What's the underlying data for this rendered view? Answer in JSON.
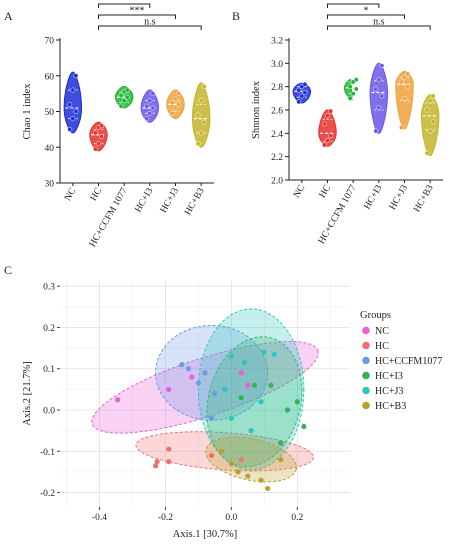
{
  "panels": {
    "a": "A",
    "b": "B",
    "c": "C"
  },
  "chart_data": [
    {
      "type": "violin",
      "panel": "A",
      "ylabel": "Chao 1 index",
      "ylim": [
        30,
        70
      ],
      "yticks": [
        30,
        40,
        50,
        60,
        70
      ],
      "categories": [
        "NC",
        "HC",
        "HC+CCFM 1077",
        "HC+I3",
        "HC+J3",
        "HC+B3"
      ],
      "colors": [
        "#1c2ed6",
        "#e8302c",
        "#1fb532",
        "#6a58e8",
        "#f0a13a",
        "#c4b52a"
      ],
      "groups": [
        {
          "name": "NC",
          "min": 44,
          "q1": 48,
          "median": 51,
          "q3": 56,
          "max": 61,
          "points": [
            45,
            48,
            50,
            52,
            56,
            60
          ]
        },
        {
          "name": "HC",
          "min": 39,
          "q1": 41,
          "median": 43.5,
          "q3": 45,
          "max": 47,
          "points": [
            39.5,
            41,
            43,
            44,
            45.5,
            46
          ]
        },
        {
          "name": "HC+CCFM 1077",
          "min": 51,
          "q1": 52.5,
          "median": 54,
          "q3": 55.5,
          "max": 57,
          "points": [
            51.5,
            53,
            54,
            54.5,
            55.5,
            56
          ]
        },
        {
          "name": "HC+I3",
          "min": 47,
          "q1": 49.5,
          "median": 51,
          "q3": 53,
          "max": 56,
          "points": [
            48,
            49.5,
            51,
            51.5,
            53,
            55
          ]
        },
        {
          "name": "HC+J3",
          "min": 48,
          "q1": 50,
          "median": 52,
          "q3": 53,
          "max": 56,
          "points": [
            49.5,
            51,
            52,
            52.5,
            53.5,
            55
          ]
        },
        {
          "name": "HC+B3",
          "min": 40,
          "q1": 44,
          "median": 48,
          "q3": 52,
          "max": 58,
          "points": [
            41,
            44,
            47,
            49,
            53,
            57
          ]
        }
      ],
      "brackets": [
        {
          "from": "NC",
          "to": "HC",
          "label": "**"
        },
        {
          "from": "HC",
          "to": "HC+CCFM 1077",
          "label": "***"
        },
        {
          "from": "HC",
          "to": "HC+I3",
          "label": "**"
        },
        {
          "from": "HC",
          "to": "HC+J3",
          "label": "***"
        },
        {
          "from": "HC",
          "to": "HC+B3",
          "label": "n.s"
        }
      ]
    },
    {
      "type": "violin",
      "panel": "B",
      "ylabel": "Shnnon index",
      "ylim": [
        2.0,
        3.2
      ],
      "yticks": [
        "2.0",
        "2.2",
        "2.4",
        "2.6",
        "2.8",
        "3.0",
        "3.2"
      ],
      "categories": [
        "NC",
        "HC",
        "HC+CCFM 1077",
        "HC+I3",
        "HC+J3",
        "HC+B3"
      ],
      "colors": [
        "#1c2ed6",
        "#e8302c",
        "#1fb532",
        "#6a58e8",
        "#f0a13a",
        "#c4b52a"
      ],
      "groups": [
        {
          "name": "NC",
          "min": 2.66,
          "q1": 2.71,
          "median": 2.76,
          "q3": 2.8,
          "max": 2.83,
          "points": [
            2.67,
            2.72,
            2.75,
            2.77,
            2.8,
            2.82
          ]
        },
        {
          "name": "HC",
          "min": 2.29,
          "q1": 2.33,
          "median": 2.4,
          "q3": 2.52,
          "max": 2.6,
          "points": [
            2.3,
            2.34,
            2.38,
            2.48,
            2.55,
            2.59
          ]
        },
        {
          "name": "HC+CCFM 1077",
          "min": 2.69,
          "q1": 2.74,
          "median": 2.79,
          "q3": 2.84,
          "max": 2.87,
          "points": [
            2.7,
            2.74,
            2.78,
            2.8,
            2.84,
            2.86
          ]
        },
        {
          "name": "HC+I3",
          "min": 2.4,
          "q1": 2.6,
          "median": 2.75,
          "q3": 2.85,
          "max": 3.0,
          "points": [
            2.42,
            2.62,
            2.72,
            2.78,
            2.86,
            2.98
          ]
        },
        {
          "name": "HC+J3",
          "min": 2.44,
          "q1": 2.68,
          "median": 2.82,
          "q3": 2.88,
          "max": 2.93,
          "points": [
            2.45,
            2.7,
            2.8,
            2.84,
            2.88,
            2.91
          ]
        },
        {
          "name": "HC+B3",
          "min": 2.21,
          "q1": 2.43,
          "median": 2.55,
          "q3": 2.66,
          "max": 2.73,
          "points": [
            2.23,
            2.42,
            2.5,
            2.6,
            2.68,
            2.72
          ]
        }
      ],
      "brackets": [
        {
          "from": "NC",
          "to": "HC",
          "label": "*"
        },
        {
          "from": "HC",
          "to": "HC+CCFM 1077",
          "label": "*"
        },
        {
          "from": "HC",
          "to": "HC+I3",
          "label": "*"
        },
        {
          "from": "HC",
          "to": "HC+J3",
          "label": "*"
        },
        {
          "from": "HC",
          "to": "HC+B3",
          "label": "n.s"
        }
      ]
    },
    {
      "type": "scatter",
      "panel": "C",
      "xlabel": "Axis.1   [30.7%]",
      "ylabel": "Axis.2   [21.7%]",
      "xlim": [
        -0.52,
        0.36
      ],
      "ylim": [
        -0.235,
        0.315
      ],
      "xticks": [
        "-0.4",
        "-0.2",
        "0.0",
        "0.2"
      ],
      "yticks": [
        "-0.2",
        "-0.1",
        "0.0",
        "0.1",
        "0.2",
        "0.3"
      ],
      "grid": true,
      "legend_title": "Groups",
      "legend_position": "right",
      "series": [
        {
          "name": "NC",
          "color": "#e85fd6",
          "ellipse": {
            "cx": -0.08,
            "cy": 0.055,
            "rx": 0.36,
            "ry": 0.07,
            "angle_deg": 18
          },
          "points": [
            [
              -0.345,
              0.025
            ],
            [
              -0.19,
              0.05
            ],
            [
              -0.12,
              0.08
            ],
            [
              -0.08,
              0.09
            ],
            [
              0.03,
              0.09
            ],
            [
              0.05,
              0.06
            ]
          ]
        },
        {
          "name": "HC",
          "color": "#f07070",
          "ellipse": {
            "cx": -0.02,
            "cy": -0.1,
            "rx": 0.27,
            "ry": 0.045,
            "angle_deg": -4
          },
          "points": [
            [
              -0.225,
              -0.125
            ],
            [
              -0.23,
              -0.135
            ],
            [
              -0.19,
              -0.095
            ],
            [
              -0.19,
              -0.125
            ],
            [
              -0.06,
              -0.11
            ],
            [
              0.03,
              -0.12
            ]
          ]
        },
        {
          "name": "HC+CCFM1077",
          "color": "#6c9ae8",
          "ellipse": {
            "cx": -0.06,
            "cy": 0.09,
            "rx": 0.17,
            "ry": 0.115,
            "angle_deg": 0
          },
          "points": [
            [
              -0.15,
              0.11
            ],
            [
              -0.13,
              0.1
            ],
            [
              -0.08,
              0.09
            ],
            [
              -0.1,
              0.065
            ],
            [
              -0.05,
              0.04
            ],
            [
              -0.06,
              -0.02
            ]
          ]
        },
        {
          "name": "HC+I3",
          "color": "#2fb552",
          "ellipse": {
            "cx": 0.07,
            "cy": 0.02,
            "rx": 0.14,
            "ry": 0.16,
            "angle_deg": -14
          },
          "points": [
            [
              0.03,
              0.03
            ],
            [
              0.07,
              0.06
            ],
            [
              0.12,
              0.06
            ],
            [
              0.17,
              0.0
            ],
            [
              0.2,
              0.02
            ],
            [
              0.22,
              -0.04
            ],
            [
              0.15,
              -0.08
            ]
          ]
        },
        {
          "name": "HC+J3",
          "color": "#2fc6c0",
          "ellipse": {
            "cx": 0.06,
            "cy": 0.05,
            "rx": 0.16,
            "ry": 0.195,
            "angle_deg": 0
          },
          "points": [
            [
              0.0,
              0.13
            ],
            [
              0.04,
              0.115
            ],
            [
              0.1,
              0.14
            ],
            [
              0.13,
              0.135
            ],
            [
              -0.02,
              0.05
            ],
            [
              0.09,
              0.02
            ],
            [
              0.0,
              -0.02
            ],
            [
              0.06,
              -0.05
            ]
          ]
        },
        {
          "name": "HC+B3",
          "color": "#b8a02a",
          "ellipse": {
            "cx": 0.06,
            "cy": -0.12,
            "rx": 0.14,
            "ry": 0.05,
            "angle_deg": -12
          },
          "points": [
            [
              -0.03,
              -0.1
            ],
            [
              0.0,
              -0.13
            ],
            [
              0.02,
              -0.15
            ],
            [
              0.05,
              -0.16
            ],
            [
              0.09,
              -0.17
            ],
            [
              0.11,
              -0.19
            ],
            [
              0.15,
              -0.12
            ]
          ]
        }
      ]
    }
  ]
}
